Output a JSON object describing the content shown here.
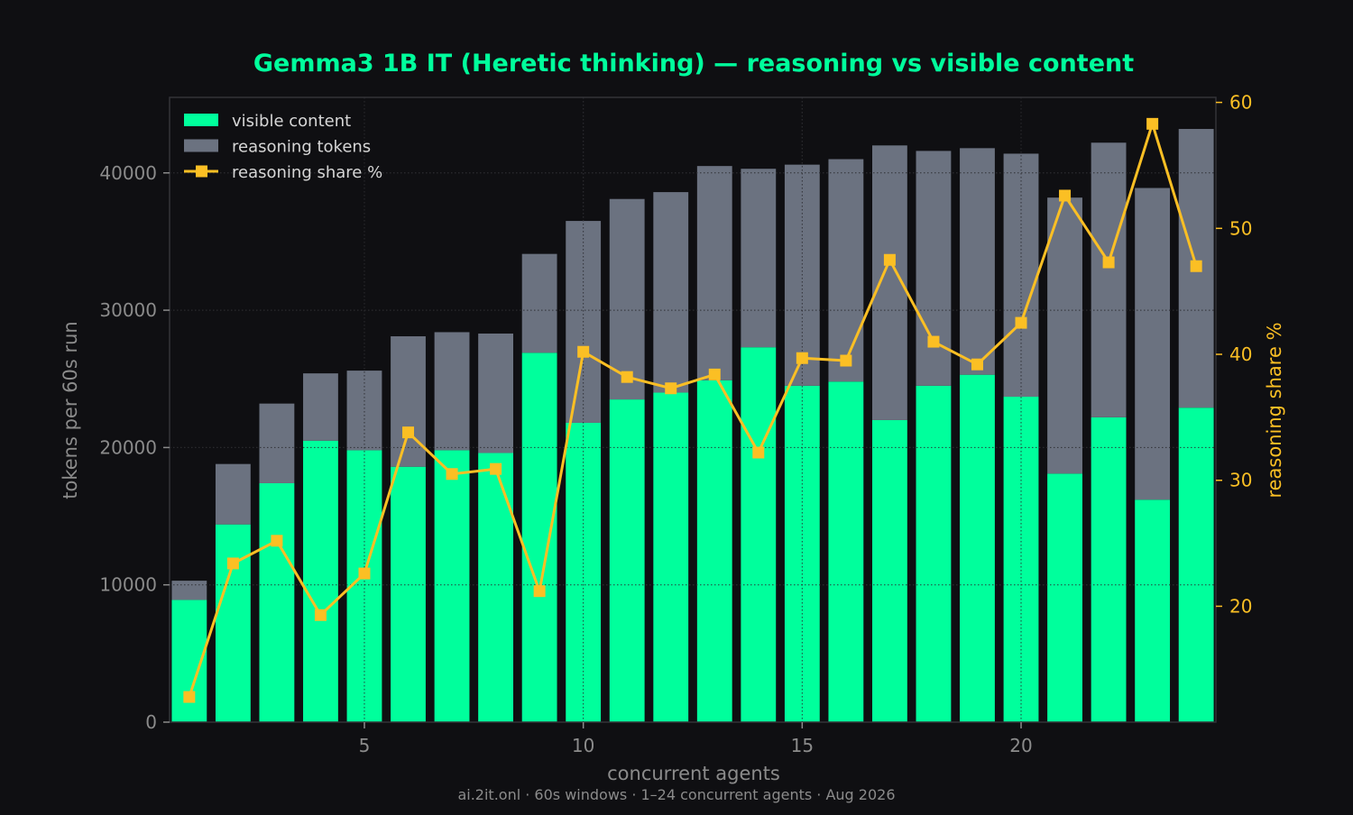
{
  "chart_data": {
    "type": "bar",
    "title": "Gemma3 1B IT (Heretic thinking) — reasoning vs visible content",
    "xlabel": "concurrent agents",
    "ylabel": "tokens per 60s run",
    "y2label": "reasoning share %",
    "footnote": "ai.2it.onl · 60s windows · 1–24 concurrent agents · Aug 2026",
    "x": [
      1,
      2,
      3,
      4,
      5,
      6,
      7,
      8,
      9,
      10,
      11,
      12,
      13,
      14,
      15,
      16,
      17,
      18,
      19,
      20,
      21,
      22,
      23,
      24
    ],
    "xlim": [
      0.55,
      24.45
    ],
    "ylim": [
      0,
      45500
    ],
    "y2lim": [
      10.8,
      60.4
    ],
    "xticks": [
      5,
      10,
      15,
      20
    ],
    "yticks": [
      0,
      10000,
      20000,
      30000,
      40000
    ],
    "y2ticks": [
      20,
      30,
      40,
      50,
      60
    ],
    "grid": true,
    "legend_position": "top-left",
    "series": [
      {
        "name": "visible content",
        "kind": "bar",
        "stack": "bottom",
        "color": "#00ff9c",
        "values": [
          8900,
          14400,
          17400,
          20500,
          19800,
          18600,
          19800,
          19600,
          26900,
          21800,
          23500,
          24000,
          24900,
          27300,
          24500,
          24800,
          22000,
          24500,
          25300,
          23700,
          18100,
          22200,
          16200,
          22900
        ]
      },
      {
        "name": "reasoning tokens",
        "kind": "bar",
        "stack": "top",
        "color": "#6b7280",
        "values": [
          1400,
          4400,
          5800,
          4900,
          5800,
          9500,
          8600,
          8700,
          7200,
          14700,
          14600,
          14600,
          15600,
          13000,
          16100,
          16200,
          20000,
          17100,
          16500,
          17700,
          20100,
          20000,
          22700,
          20300
        ]
      },
      {
        "name": "reasoning share %",
        "kind": "line",
        "axis": "right",
        "color": "#fbbf24",
        "values": [
          12.8,
          23.4,
          25.2,
          19.3,
          22.6,
          33.8,
          30.5,
          30.9,
          21.2,
          40.2,
          38.2,
          37.3,
          38.4,
          32.2,
          39.7,
          39.5,
          47.5,
          41.0,
          39.2,
          42.5,
          52.6,
          47.3,
          58.3,
          47.0
        ]
      }
    ]
  }
}
